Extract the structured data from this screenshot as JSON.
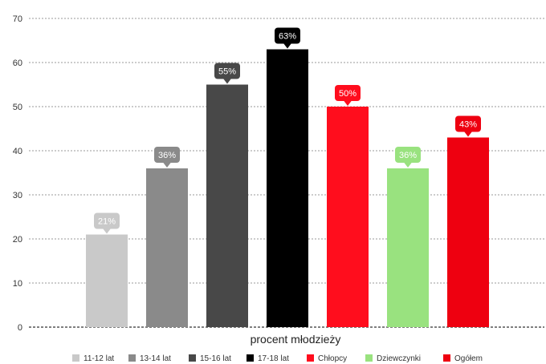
{
  "chart_data": {
    "type": "bar",
    "xlabel": "procent młodzieży",
    "ylabel": "",
    "ylim": [
      0,
      70
    ],
    "yticks": [
      0,
      10,
      20,
      30,
      40,
      50,
      60,
      70
    ],
    "grid": true,
    "legend_position": "bottom",
    "categories": [
      "11-12 lat",
      "13-14 lat",
      "15-16 lat",
      "17-18 lat",
      "Chłopcy",
      "Dziewczynki",
      "Ogółem"
    ],
    "values": [
      21,
      36,
      55,
      63,
      50,
      36,
      43
    ],
    "value_labels": [
      "21%",
      "36%",
      "55%",
      "63%",
      "50%",
      "36%",
      "43%"
    ],
    "colors": [
      "#c9c9c9",
      "#8a8a8a",
      "#484848",
      "#000000",
      "#ff0d1d",
      "#99e27f",
      "#ee0010"
    ]
  }
}
